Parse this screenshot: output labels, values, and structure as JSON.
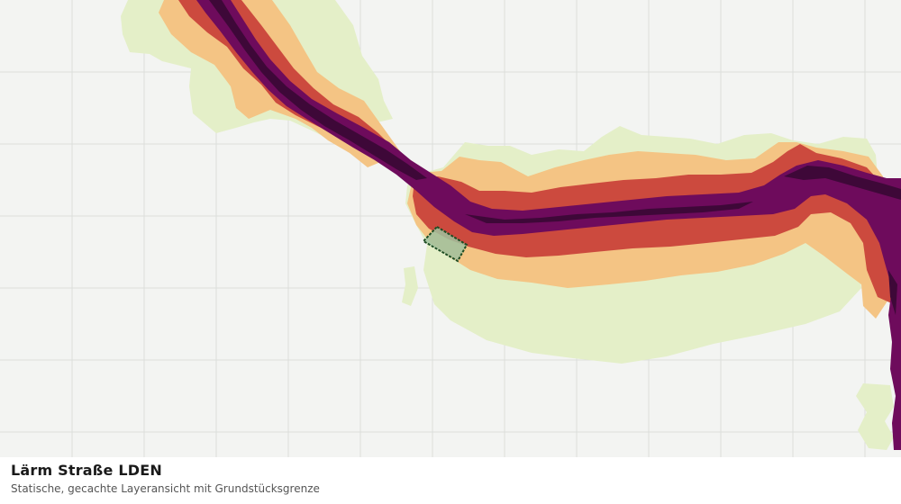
{
  "layer": {
    "title": "Lärm Straße LDEN",
    "subtitle": "Statische, gecachte Layeransicht mit Grundstücksgrenze"
  },
  "colors": {
    "background": "#f3f4f2",
    "grid": "#dcdedb",
    "band_low": "#e4efc8",
    "band_mid": "#f4c484",
    "band_high": "#cc4a3e",
    "band_very_high": "#6e0b5c",
    "band_extreme": "#3e0838",
    "parcel_fill": "#9fc29f",
    "parcel_stroke": "#1f4d24"
  }
}
